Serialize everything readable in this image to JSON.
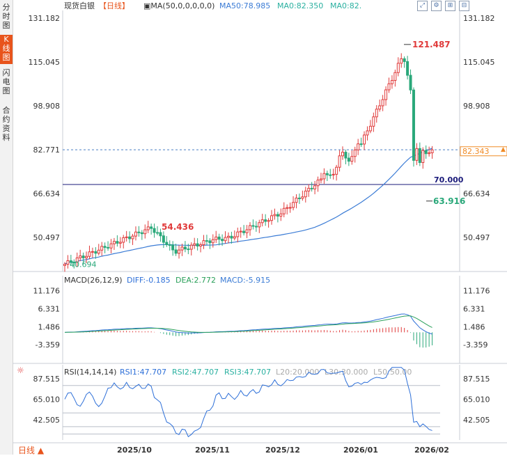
{
  "sidebar": {
    "tabs": [
      {
        "label": "分时图",
        "active": false
      },
      {
        "label": "K线图",
        "active": true
      },
      {
        "label": "闪电图",
        "active": false
      },
      {
        "label": "合约资料",
        "active": false
      }
    ]
  },
  "toolbar": {
    "symbol": "现货白银",
    "period": "【日线】",
    "ma_main": "MA(50,0,0,0,0,0)",
    "ma50": "MA50:78.985",
    "ma0a": "MA0:82.350",
    "ma0b": "MA0:82.",
    "icons": [
      "fullscreen-icon",
      "settings-icon",
      "zoom-in-icon",
      "zoom-out-icon"
    ]
  },
  "period_button": {
    "label": "日线"
  },
  "colors": {
    "up": "#e03a3a",
    "down": "#2aa87a",
    "ma50": "#3a7bd5",
    "grid": "#d5dbe3",
    "price_line": "#1a1a7a",
    "last_price": "#f08a24",
    "diff": "#2d6fd8",
    "dea": "#2aa05a",
    "rsi": "#2d6fd8"
  },
  "chart_data": [
    {
      "type": "candlestick",
      "title": "现货白银",
      "y_ticks": [
        "131.182",
        "115.045",
        "98.908",
        "82.771",
        "66.634",
        "50.497"
      ],
      "ylim": [
        38,
        134
      ],
      "x_ticks": [
        "2025/10",
        "2025/11",
        "2025/12",
        "2026/01",
        "2026/02"
      ],
      "annotations": {
        "max_label": "121.487",
        "min_label": "63.916",
        "mid_high_label": "54.436",
        "start_label": "40.694",
        "hline_label": "70.000",
        "last_price": "82.343"
      },
      "ma50_label": "MA50:78.985",
      "grid": true
    },
    {
      "type": "macd",
      "title": "MACD(26,12,9)",
      "labels": {
        "diff": "DIFF:-0.185",
        "dea": "DEA:2.772",
        "macd": "MACD:-5.915"
      },
      "y_ticks": [
        "11.176",
        "6.331",
        "1.486",
        "-3.359"
      ],
      "ylim": [
        -8,
        13
      ],
      "grid": true
    },
    {
      "type": "rsi",
      "title": "RSI(14,14,14)",
      "labels": {
        "rsi1": "RSI1:47.707",
        "rsi2": "RSI2:47.707",
        "rsi3": "RSI3:47.707",
        "l20": "L20:20.000",
        "l30": "L30:30.000",
        "l50": "L50:50.00"
      },
      "y_ticks": [
        "87.515",
        "65.010",
        "42.505"
      ],
      "ylim": [
        22,
        95
      ],
      "grid": true
    }
  ]
}
